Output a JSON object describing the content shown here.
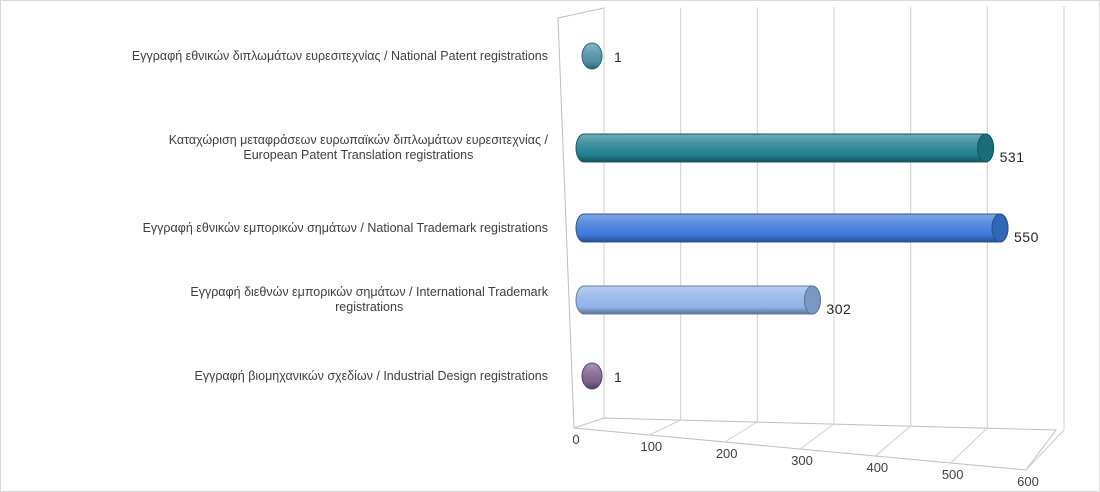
{
  "chart_data": {
    "type": "bar",
    "orientation": "horizontal",
    "style": "3d-cylinder",
    "categories": [
      [
        "Εγγραφή  εθνικών διπλωμάτων ευρεσιτεχνίας / National Patent registrations"
      ],
      [
        "Καταχώριση μεταφράσεων ευρωπαϊκών διπλωμάτων ευρεσιτεχνίας /",
        "European Patent Translation registrations"
      ],
      [
        "Εγγραφή  εθνικών εμπορικών σημάτων / National Trademark registrations"
      ],
      [
        "Εγγραφή  διεθνών εμπορικών σημάτων / International Trademark",
        "registrations"
      ],
      [
        "Εγγραφή  βιομηχανικών σχεδίων / Industrial Design registrations"
      ]
    ],
    "values": [
      1,
      531,
      550,
      302,
      1
    ],
    "data_labels": [
      "1",
      "531",
      "550",
      "302",
      "1"
    ],
    "colors": [
      "#4a8ea6",
      "#1f7f8e",
      "#3b78d8",
      "#8fb3e8",
      "#7a5f8a"
    ],
    "xlim": [
      0,
      600
    ],
    "xticks": [
      "0",
      "100",
      "200",
      "300",
      "400",
      "500",
      "600"
    ],
    "grid": true,
    "legend": "none"
  }
}
